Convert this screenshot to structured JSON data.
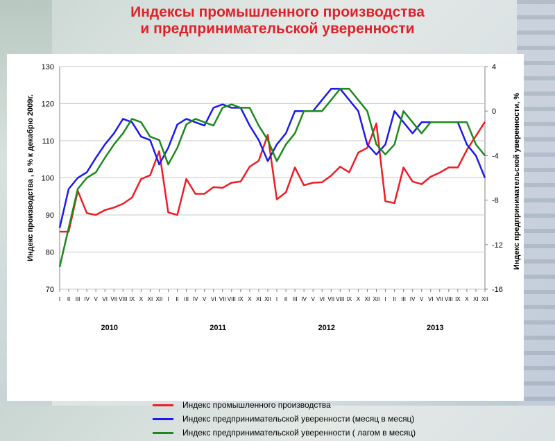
{
  "title_line1": "Индексы промышленного производства",
  "title_line2": "и предпринимательской уверенности",
  "colors": {
    "red": "#ee1c24",
    "blue": "#1a1aee",
    "green": "#1b8a1b",
    "title": "#e0212a"
  },
  "chart_data": {
    "type": "line",
    "ylabel": "Индекс производства , в % к декабрю 2009г.",
    "y2label": "Индекс предпринимательской уверенности, %",
    "ylim": [
      70,
      130
    ],
    "y2lim": [
      -16,
      4
    ],
    "yticks": [
      70,
      80,
      90,
      100,
      110,
      120,
      130
    ],
    "y2ticks": [
      4,
      0,
      -4,
      -8,
      -12,
      -16
    ],
    "grid": true,
    "months": [
      "I",
      "II",
      "III",
      "IV",
      "V",
      "VI",
      "VII",
      "VIII",
      "IX",
      "X",
      "XI",
      "XII",
      "I",
      "II",
      "III",
      "IV",
      "V",
      "VI",
      "VII",
      "VIII",
      "IX",
      "X",
      "XI",
      "XII",
      "I",
      "II",
      "III",
      "IV",
      "V",
      "VI",
      "VII",
      "VIII",
      "IX",
      "X",
      "XI",
      "XII",
      "I",
      "II",
      "III",
      "IV",
      "V",
      "VI",
      "VII",
      "VIII",
      "IX",
      "X",
      "XI",
      "XII"
    ],
    "years": [
      "2010",
      "2011",
      "2012",
      "2013"
    ],
    "series": [
      {
        "name": "Индекс промышленного производства",
        "axis": "left",
        "color": "#ee1c24",
        "values": [
          85.5,
          85.5,
          96.5,
          90.5,
          90.0,
          91.3,
          92.0,
          93.0,
          94.7,
          99.7,
          100.7,
          107.2,
          90.7,
          90.0,
          99.7,
          95.7,
          95.7,
          97.5,
          97.3,
          98.7,
          99.0,
          103.0,
          104.6,
          111.6,
          94.2,
          96.1,
          102.8,
          98.0,
          98.7,
          98.8,
          100.6,
          103.0,
          101.5,
          106.8,
          108.1,
          114.7,
          93.7,
          93.2,
          102.8,
          99.0,
          98.3,
          100.3,
          101.4,
          102.8,
          102.8,
          107.5,
          111.3,
          115.1
        ]
      },
      {
        "name": "Индекс предпринимательской уверенности (месяц в месяц)",
        "axis": "right",
        "color": "#1a1aee",
        "values": [
          -10.5,
          -7.0,
          -6.0,
          -5.5,
          -4.2,
          -3.0,
          -2.0,
          -0.7,
          -1.0,
          -2.3,
          -2.6,
          -4.8,
          -3.3,
          -1.2,
          -0.7,
          -1.0,
          -1.3,
          0.3,
          0.6,
          0.3,
          0.3,
          -1.3,
          -2.6,
          -4.5,
          -3.0,
          -2.0,
          0.0,
          0.0,
          0.0,
          1.0,
          2.0,
          2.0,
          1.0,
          0.0,
          -3.0,
          -3.9,
          -3.0,
          0.0,
          -1.0,
          -2.0,
          -1.0,
          -1.0,
          -1.0,
          -1.0,
          -1.0,
          -3.0,
          -4.0,
          -6.0
        ]
      },
      {
        "name": "Индекс предпринимательской уверенности ( лагом в месяц)",
        "axis": "right",
        "color": "#1b8a1b",
        "values": [
          -14.0,
          -10.5,
          -7.0,
          -6.0,
          -5.5,
          -4.2,
          -3.0,
          -2.0,
          -0.7,
          -1.0,
          -2.3,
          -2.6,
          -4.8,
          -3.3,
          -1.2,
          -0.7,
          -1.0,
          -1.3,
          0.3,
          0.6,
          0.3,
          0.3,
          -1.3,
          -2.6,
          -4.5,
          -3.0,
          -2.0,
          0.0,
          0.0,
          0.0,
          1.0,
          2.0,
          2.0,
          1.0,
          0.0,
          -3.0,
          -3.9,
          -3.0,
          0.0,
          -1.0,
          -2.0,
          -1.0,
          -1.0,
          -1.0,
          -1.0,
          -1.0,
          -3.0,
          -4.0
        ]
      }
    ]
  }
}
